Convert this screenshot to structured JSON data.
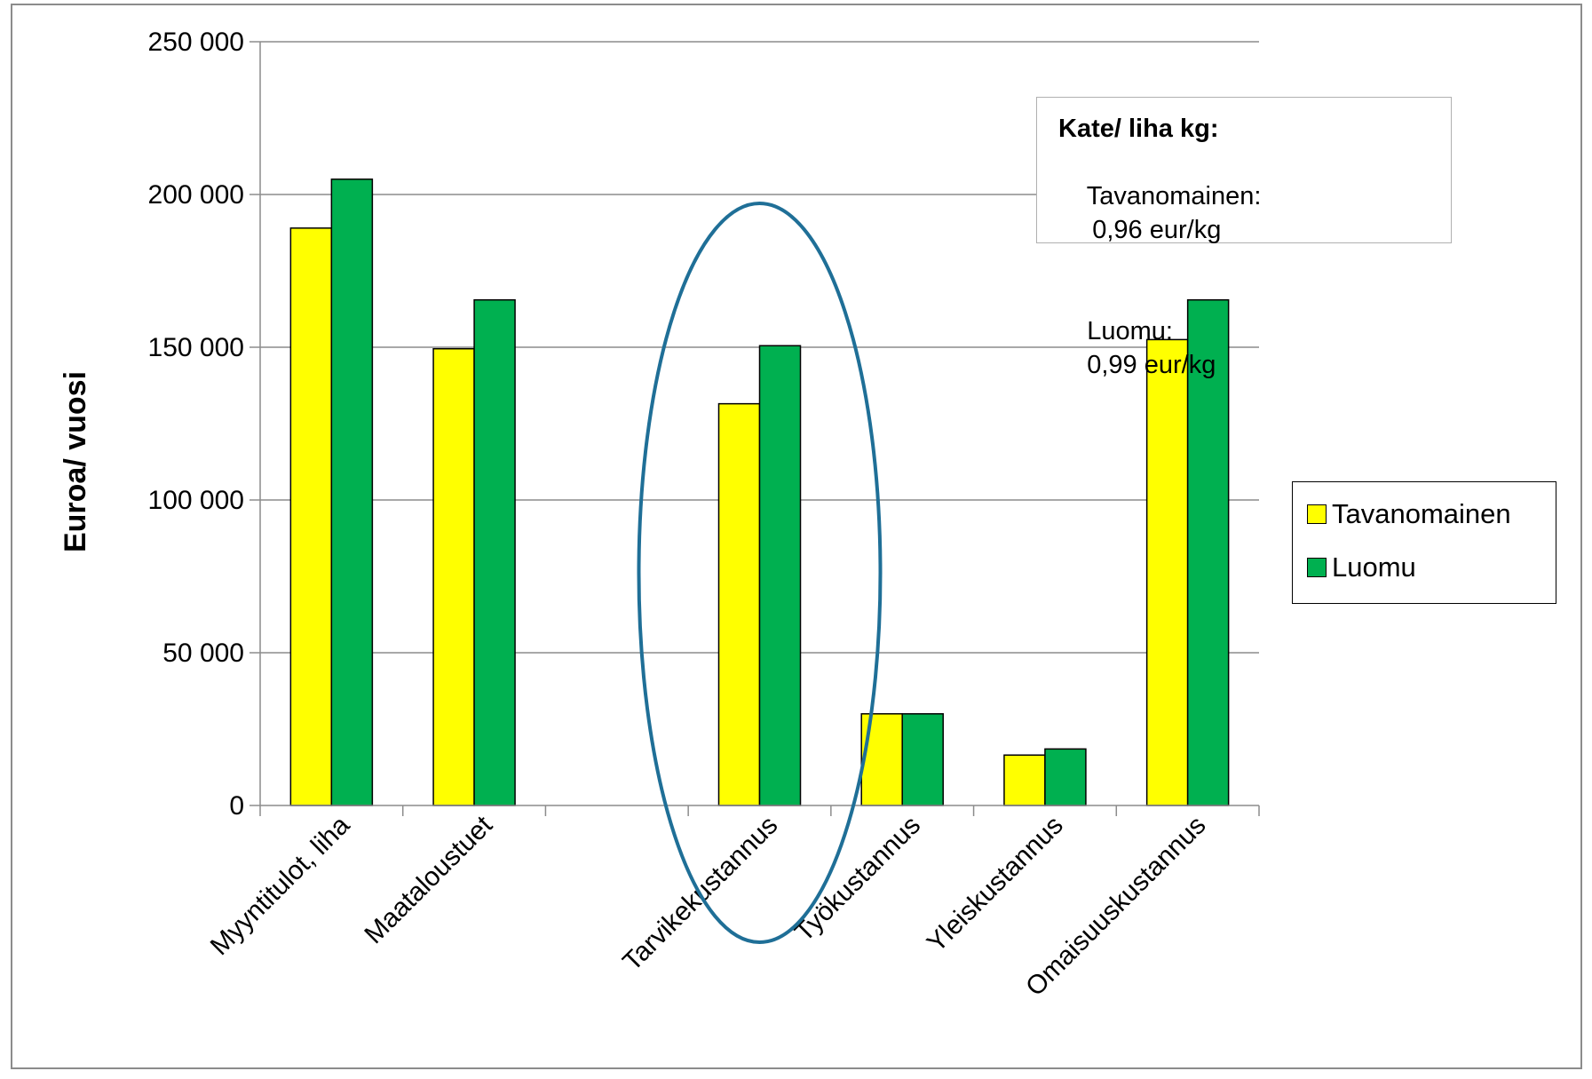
{
  "chart_data": {
    "type": "bar",
    "title": "",
    "xlabel": "",
    "ylabel": "Euroa/ vuosi",
    "ylim": [
      0,
      250000
    ],
    "yticks": [
      0,
      50000,
      100000,
      150000,
      200000,
      250000
    ],
    "ytick_labels": [
      "0",
      "50 000",
      "100 000",
      "150 000",
      "200 000",
      "250 000"
    ],
    "grid": true,
    "legend_position": "right",
    "categories": [
      "Myyntitulot, liha",
      "Maataloustuet",
      "",
      "Tarvikekustannus",
      "Työkustannus",
      "Yleiskustannus",
      "Omaisuuskustannus"
    ],
    "series": [
      {
        "name": "Tavanomainen",
        "color": "#ffff00",
        "values": [
          189000,
          149500,
          null,
          131500,
          30000,
          16500,
          152500
        ]
      },
      {
        "name": "Luomu",
        "color": "#00b050",
        "values": [
          205000,
          165500,
          null,
          150500,
          30000,
          18500,
          165500
        ]
      }
    ],
    "highlight": {
      "shape": "ellipse",
      "category": "Tarvikekustannus",
      "color": "#1f6f97"
    },
    "annotation": {
      "title": "Kate/ liha kg:",
      "rows": [
        {
          "label": "Tavanomainen:",
          "value": "0,96 eur/kg"
        },
        {
          "label": "Luomu:",
          "value": "0,99 eur/kg"
        }
      ]
    }
  }
}
